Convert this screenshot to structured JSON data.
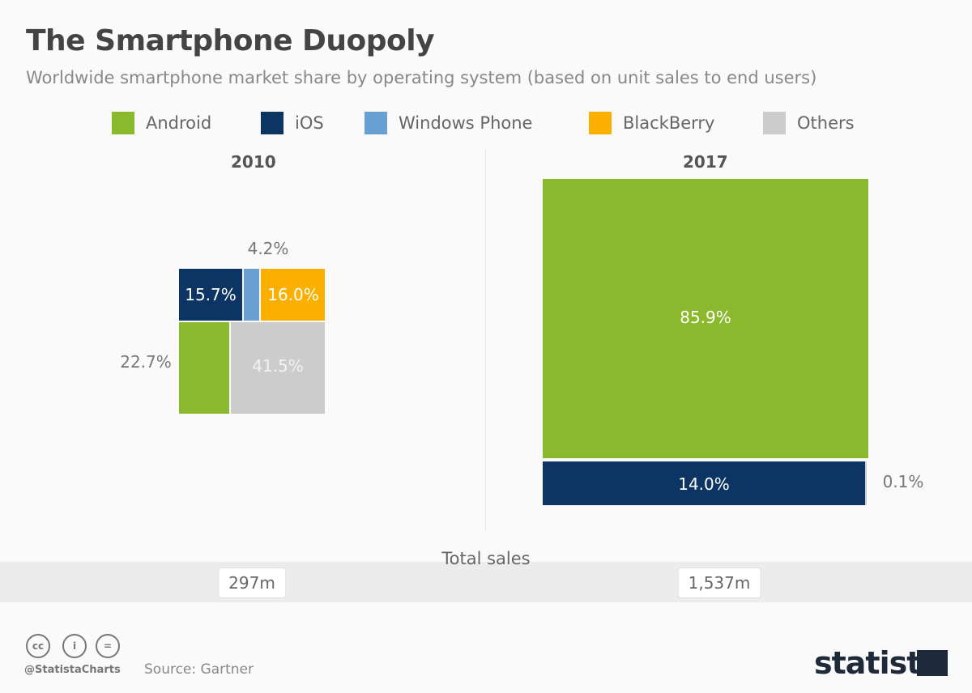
{
  "chart_data": {
    "type": "treemap",
    "title": "The Smartphone Duopoly",
    "subtitle": "Worldwide smartphone market share by operating system (based on unit sales to end users)",
    "legend": [
      {
        "name": "Android",
        "color": "#8ab92d"
      },
      {
        "name": "iOS",
        "color": "#0c3563"
      },
      {
        "name": "Windows Phone",
        "color": "#6a9fd4"
      },
      {
        "name": "BlackBerry",
        "color": "#fbb000"
      },
      {
        "name": "Others",
        "color": "#cccccc"
      }
    ],
    "panels": [
      {
        "year": "2010",
        "total_sales": "297m",
        "segments": [
          {
            "os": "iOS",
            "value": 15.7,
            "label": "15.7%"
          },
          {
            "os": "Windows Phone",
            "value": 4.2,
            "label": "4.2%"
          },
          {
            "os": "BlackBerry",
            "value": 16.0,
            "label": "16.0%"
          },
          {
            "os": "Android",
            "value": 22.7,
            "label": "22.7%"
          },
          {
            "os": "Others",
            "value": 41.5,
            "label": "41.5%"
          }
        ]
      },
      {
        "year": "2017",
        "total_sales": "1,537m",
        "segments": [
          {
            "os": "Android",
            "value": 85.9,
            "label": "85.9%"
          },
          {
            "os": "iOS",
            "value": 14.0,
            "label": "14.0%"
          },
          {
            "os": "Others",
            "value": 0.1,
            "label": "0.1%"
          }
        ]
      }
    ],
    "total_label": "Total sales"
  },
  "footer": {
    "handle": "@StatistaCharts",
    "source": "Source: Gartner",
    "logo": "statista",
    "license_icons": [
      "cc-icon",
      "by-icon",
      "nd-icon"
    ]
  }
}
